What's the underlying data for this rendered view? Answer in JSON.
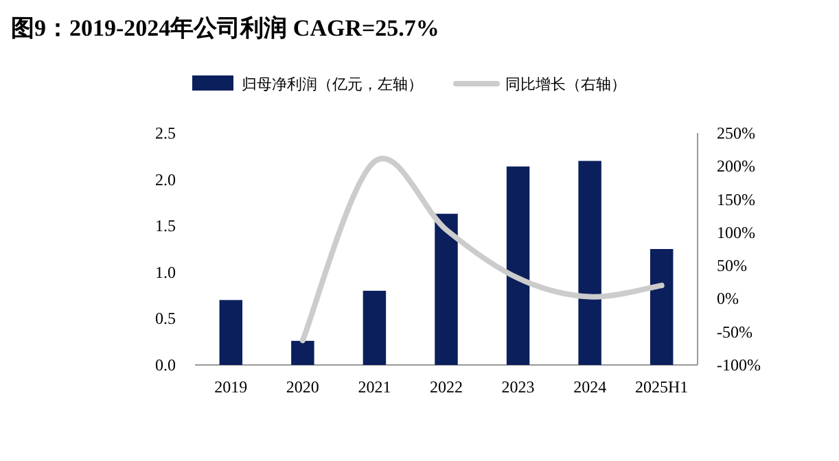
{
  "chart_data": {
    "type": "bar",
    "title": "图9：2019-2024年公司利润 CAGR=25.7%",
    "categories": [
      "2019",
      "2020",
      "2021",
      "2022",
      "2023",
      "2024",
      "2025H1"
    ],
    "series": [
      {
        "name": "归母净利润（亿元，左轴）",
        "color": "#0b1f5c",
        "values": [
          0.7,
          0.26,
          0.8,
          1.63,
          2.14,
          2.2,
          1.25
        ]
      },
      {
        "name": "同比增长（右轴）",
        "type": "line",
        "axis": "y2",
        "color": "#cccccc",
        "values": [
          null,
          -63,
          207,
          104,
          31,
          3,
          20
        ]
      }
    ],
    "ylim": [
      0,
      2.5
    ],
    "yticks": [
      {
        "value": 0,
        "label": "0.0"
      },
      0.5,
      {
        "value": 1,
        "label": "1.0"
      },
      1.5,
      {
        "value": 2,
        "label": "2.0"
      },
      2.5
    ],
    "y2lim": [
      -100,
      250
    ],
    "y2ticks": [
      {
        "value": -100,
        "label": "-100%"
      },
      {
        "value": -50,
        "label": "-50%"
      },
      {
        "value": 0,
        "label": "0%"
      },
      {
        "value": 50,
        "label": "50%"
      },
      {
        "value": 100,
        "label": "100%"
      },
      {
        "value": 150,
        "label": "150%"
      },
      {
        "value": 200,
        "label": "200%"
      },
      {
        "value": 250,
        "label": "250%"
      }
    ],
    "legend": "top",
    "grid": false,
    "marker": "none"
  }
}
